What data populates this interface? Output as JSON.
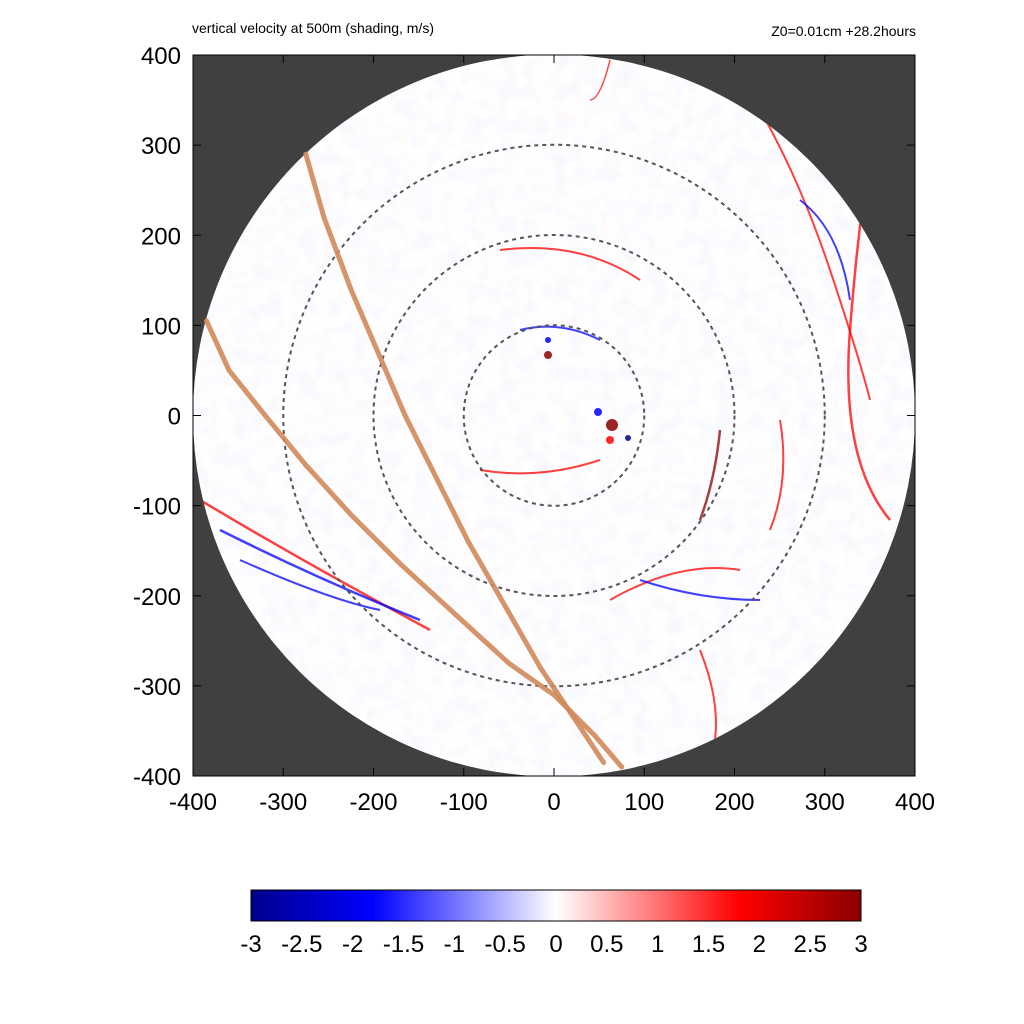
{
  "header": {
    "title": "vertical velocity at 500m (shading, m/s)",
    "info": "Z0=0.01cm  +28.2hours"
  },
  "chart_data": {
    "type": "heatmap",
    "title": "vertical velocity at 500m (shading, m/s)",
    "xlabel": "",
    "ylabel": "",
    "xlim": [
      -400,
      400
    ],
    "ylim": [
      -400,
      400
    ],
    "x_ticks": [
      -400,
      -300,
      -200,
      -100,
      0,
      100,
      200,
      300,
      400
    ],
    "y_ticks": [
      -400,
      -300,
      -200,
      -100,
      0,
      100,
      200,
      300,
      400
    ],
    "x_tick_labels": [
      "-400",
      "-300",
      "-200",
      "-100",
      "0",
      "100",
      "200",
      "300",
      "400"
    ],
    "y_tick_labels": [
      "-400",
      "-300",
      "-200",
      "-100",
      "0",
      "100",
      "200",
      "300",
      "400"
    ],
    "domain_radius": 400,
    "range_rings": [
      100,
      200,
      300
    ],
    "track_lines": [
      [
        [
          -275,
          290
        ],
        [
          -255,
          220
        ],
        [
          -225,
          140
        ],
        [
          -195,
          70
        ],
        [
          -165,
          0
        ],
        [
          -130,
          -70
        ],
        [
          -95,
          -140
        ],
        [
          -55,
          -210
        ],
        [
          -15,
          -280
        ],
        [
          25,
          -340
        ],
        [
          55,
          -385
        ]
      ],
      [
        [
          -385,
          105
        ],
        [
          -360,
          50
        ],
        [
          -320,
          0
        ],
        [
          -275,
          -55
        ],
        [
          -225,
          -110
        ],
        [
          -170,
          -165
        ],
        [
          -110,
          -220
        ],
        [
          -50,
          -275
        ],
        [
          0,
          -310
        ],
        [
          45,
          -355
        ],
        [
          75,
          -390
        ]
      ]
    ],
    "colorbar": {
      "min": -3,
      "max": 3,
      "ticks": [
        -3,
        -2.5,
        -2,
        -1.5,
        -1,
        -0.5,
        0,
        0.5,
        1,
        1.5,
        2,
        2.5,
        3
      ],
      "tick_labels": [
        "-3",
        "-2.5",
        "-2",
        "-1.5",
        "-1",
        "-0.5",
        "0",
        "0.5",
        "1",
        "1.5",
        "2",
        "2.5",
        "3"
      ]
    }
  },
  "colors": {
    "outside_domain": "#404040",
    "negative_max": "#00008b",
    "negative_mid": "#0000ff",
    "neutral": "#ffffff",
    "positive_mid": "#ff0000",
    "positive_max": "#8b0000",
    "track": "#d2885a",
    "ring": "#555555"
  }
}
